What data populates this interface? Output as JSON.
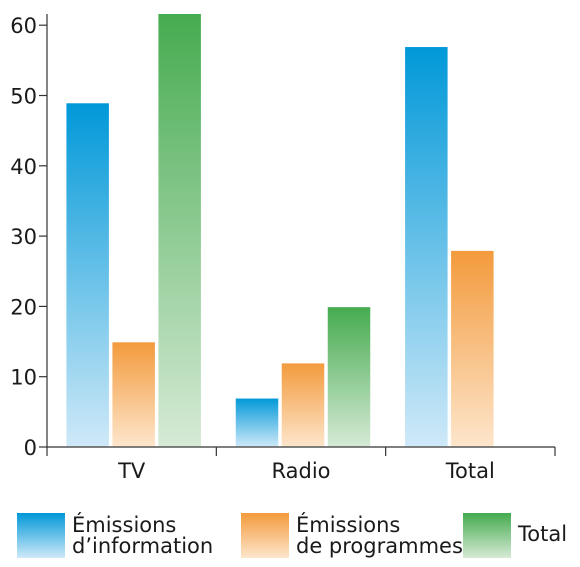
{
  "chart_data": {
    "type": "bar",
    "categories": [
      "TV",
      "Radio",
      "Total"
    ],
    "series": [
      {
        "name": "Émissions\nd’information",
        "values": [
          49,
          7,
          57
        ],
        "color": "#0aa3dc"
      },
      {
        "name": "Émissions\nde programmes",
        "values": [
          15,
          12,
          28
        ],
        "color": "#f4a04a"
      },
      {
        "name": "Total",
        "values": [
          62,
          20,
          null
        ],
        "color": "#4caf50"
      }
    ],
    "title": "",
    "xlabel": "",
    "ylabel": "",
    "ylim": [
      0,
      62
    ],
    "yticks": [
      0,
      10,
      20,
      30,
      40,
      50,
      60
    ],
    "grid": false,
    "legend_position": "bottom"
  }
}
